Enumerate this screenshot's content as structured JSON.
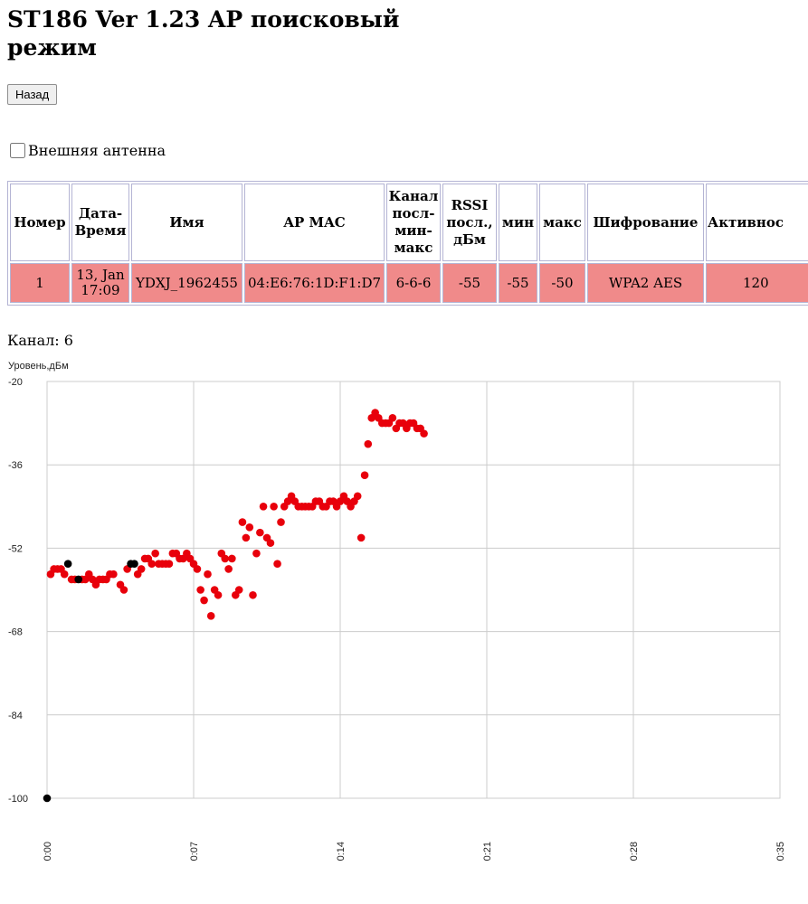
{
  "page": {
    "title": "ST186 Ver 1.23 AP поисковый режим",
    "back_button": "Назад",
    "antenna_label": "Внешняя антенна",
    "channel_label": "Канал: 6"
  },
  "table": {
    "headers": [
      "Номер",
      "Дата-Время",
      "Имя",
      "AP MAC",
      "Канал посл-мин-макс",
      "RSSI посл., дБм",
      "мин",
      "макс",
      "Шифрование",
      "Активнос"
    ],
    "rows": [
      [
        "1",
        "13, Jan 17:09",
        "YDXJ_1962455",
        "04:E6:76:1D:F1:D7",
        "6-6-6",
        "-55",
        "-55",
        "-50",
        "WPA2 AES",
        "120"
      ]
    ],
    "row_color": "#f08a8a"
  },
  "colors": {
    "point": "#e8000b",
    "point_dark": "#000000",
    "grid": "#cccccc"
  },
  "chart_data": {
    "type": "scatter",
    "ylabel": "Уровень,дБм",
    "ylim": [
      -100,
      -20
    ],
    "yticks": [
      "-20",
      "-36",
      "-52",
      "-68",
      "-84",
      "-100"
    ],
    "xticks": [
      "0:00",
      "0:07",
      "0:14",
      "0:21",
      "0:28",
      "0:35"
    ],
    "grid": true,
    "series": [
      {
        "color": "#e8000b",
        "points": [
          [
            0.17,
            -57
          ],
          [
            0.33,
            -56
          ],
          [
            0.5,
            -56
          ],
          [
            0.67,
            -56
          ],
          [
            0.83,
            -57
          ],
          [
            1.17,
            -58
          ],
          [
            1.33,
            -58
          ],
          [
            1.67,
            -58
          ],
          [
            1.83,
            -58
          ],
          [
            2.0,
            -57
          ],
          [
            2.17,
            -58
          ],
          [
            2.33,
            -59
          ],
          [
            2.5,
            -58
          ],
          [
            2.67,
            -58
          ],
          [
            2.83,
            -58
          ],
          [
            3.0,
            -57
          ],
          [
            3.17,
            -57
          ],
          [
            3.5,
            -59
          ],
          [
            3.67,
            -60
          ],
          [
            3.83,
            -56
          ],
          [
            4.33,
            -57
          ],
          [
            4.5,
            -56
          ],
          [
            4.67,
            -54
          ],
          [
            4.83,
            -54
          ],
          [
            5.0,
            -55
          ],
          [
            5.17,
            -53
          ],
          [
            5.33,
            -55
          ],
          [
            5.5,
            -55
          ],
          [
            5.67,
            -55
          ],
          [
            5.83,
            -55
          ],
          [
            6.0,
            -53
          ],
          [
            6.17,
            -53
          ],
          [
            6.33,
            -54
          ],
          [
            6.5,
            -54
          ],
          [
            6.67,
            -53
          ],
          [
            6.83,
            -54
          ],
          [
            7.0,
            -55
          ],
          [
            7.17,
            -56
          ],
          [
            7.33,
            -60
          ],
          [
            7.5,
            -62
          ],
          [
            7.67,
            -57
          ],
          [
            7.83,
            -65
          ],
          [
            8.0,
            -60
          ],
          [
            8.17,
            -61
          ],
          [
            8.33,
            -53
          ],
          [
            8.5,
            -54
          ],
          [
            8.67,
            -56
          ],
          [
            8.83,
            -54
          ],
          [
            9.0,
            -61
          ],
          [
            9.17,
            -60
          ],
          [
            9.33,
            -47
          ],
          [
            9.5,
            -50
          ],
          [
            9.67,
            -48
          ],
          [
            9.83,
            -61
          ],
          [
            10.0,
            -53
          ],
          [
            10.17,
            -49
          ],
          [
            10.33,
            -44
          ],
          [
            10.5,
            -50
          ],
          [
            10.67,
            -51
          ],
          [
            10.83,
            -44
          ],
          [
            11.0,
            -55
          ],
          [
            11.17,
            -47
          ],
          [
            11.33,
            -44
          ],
          [
            11.5,
            -43
          ],
          [
            11.67,
            -42
          ],
          [
            11.83,
            -43
          ],
          [
            12.0,
            -44
          ],
          [
            12.17,
            -44
          ],
          [
            12.33,
            -44
          ],
          [
            12.5,
            -44
          ],
          [
            12.67,
            -44
          ],
          [
            12.83,
            -43
          ],
          [
            13.0,
            -43
          ],
          [
            13.17,
            -44
          ],
          [
            13.33,
            -44
          ],
          [
            13.5,
            -43
          ],
          [
            13.67,
            -43
          ],
          [
            13.83,
            -44
          ],
          [
            14.0,
            -43
          ],
          [
            14.17,
            -42
          ],
          [
            14.33,
            -43
          ],
          [
            14.5,
            -44
          ],
          [
            14.67,
            -43
          ],
          [
            14.83,
            -42
          ],
          [
            15.0,
            -50
          ],
          [
            15.17,
            -38
          ],
          [
            15.33,
            -32
          ],
          [
            15.5,
            -27
          ],
          [
            15.67,
            -26
          ],
          [
            15.83,
            -27
          ],
          [
            16.0,
            -28
          ],
          [
            16.17,
            -28
          ],
          [
            16.33,
            -28
          ],
          [
            16.5,
            -27
          ],
          [
            16.67,
            -29
          ],
          [
            16.83,
            -28
          ],
          [
            17.0,
            -28
          ],
          [
            17.17,
            -29
          ],
          [
            17.33,
            -28
          ],
          [
            17.5,
            -28
          ],
          [
            17.67,
            -29
          ],
          [
            17.83,
            -29
          ],
          [
            18.0,
            -30
          ]
        ]
      },
      {
        "color": "#000000",
        "points": [
          [
            0.0,
            -100
          ],
          [
            1.0,
            -55
          ],
          [
            1.5,
            -58
          ],
          [
            4.0,
            -55
          ],
          [
            4.17,
            -55
          ]
        ]
      }
    ]
  }
}
